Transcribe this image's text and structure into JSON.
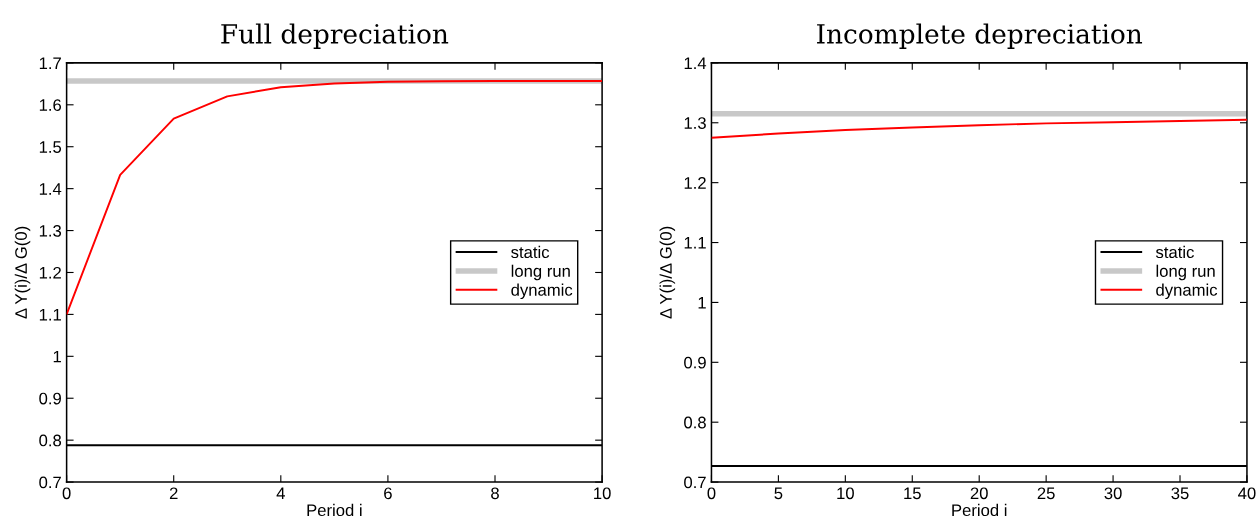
{
  "chart_data": [
    {
      "type": "line",
      "title": "Full depreciation",
      "xlabel": "Period i",
      "ylabel": "Δ Y(i)/Δ G(0)",
      "xlim": [
        0,
        10
      ],
      "xticks": [
        0,
        2,
        4,
        6,
        8,
        10
      ],
      "ylim": [
        0.7,
        1.7
      ],
      "yticks": [
        0.7,
        0.8,
        0.9,
        1,
        1.1,
        1.2,
        1.3,
        1.4,
        1.5,
        1.6,
        1.7
      ],
      "grid": false,
      "legend": "right",
      "series": [
        {
          "name": "static",
          "color": "#000000",
          "x": [
            0,
            10
          ],
          "values": [
            0.788,
            0.788
          ]
        },
        {
          "name": "long run",
          "color": "#c8c8c8",
          "x": [
            0,
            10
          ],
          "values": [
            1.657,
            1.657
          ]
        },
        {
          "name": "dynamic",
          "color": "#ff0000",
          "x": [
            0,
            1,
            2,
            3,
            4,
            5,
            6,
            7,
            8,
            9,
            10
          ],
          "values": [
            1.1,
            1.433,
            1.567,
            1.62,
            1.642,
            1.651,
            1.655,
            1.656,
            1.657,
            1.657,
            1.657
          ]
        }
      ]
    },
    {
      "type": "line",
      "title": "Incomplete depreciation",
      "xlabel": "Period i",
      "ylabel": "Δ Y(i)/Δ G(0)",
      "xlim": [
        0,
        40
      ],
      "xticks": [
        0,
        5,
        10,
        15,
        20,
        25,
        30,
        35,
        40
      ],
      "ylim": [
        0.7,
        1.4
      ],
      "yticks": [
        0.7,
        0.8,
        0.9,
        1,
        1.1,
        1.2,
        1.3,
        1.4
      ],
      "grid": false,
      "legend": "right",
      "series": [
        {
          "name": "static",
          "color": "#000000",
          "x": [
            0,
            40
          ],
          "values": [
            0.727,
            0.727
          ]
        },
        {
          "name": "long run",
          "color": "#c8c8c8",
          "x": [
            0,
            40
          ],
          "values": [
            1.315,
            1.315
          ]
        },
        {
          "name": "dynamic",
          "color": "#ff0000",
          "x": [
            0,
            5,
            10,
            15,
            20,
            25,
            30,
            35,
            40
          ],
          "values": [
            1.275,
            1.282,
            1.288,
            1.292,
            1.296,
            1.299,
            1.301,
            1.303,
            1.305
          ]
        }
      ]
    }
  ]
}
